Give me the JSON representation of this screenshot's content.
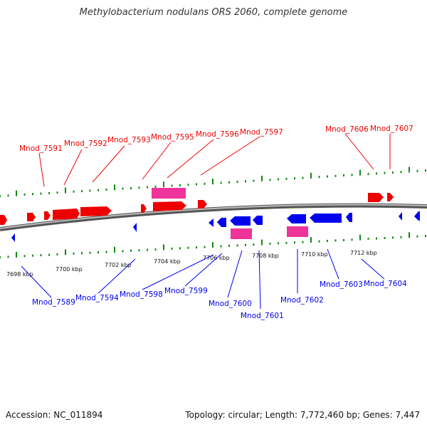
{
  "title": "Methylobacterium nodulans ORS 2060, complete genome",
  "footer": {
    "accession": "Accession: NC_011894",
    "summary": "Topology: circular; Length: 7,772,460 bp; Genes: 7,447"
  },
  "colors": {
    "forward_gene": "#ee0000",
    "reverse_gene": "#0000ee",
    "rna_gene": "#ee3399",
    "tick": "#118811",
    "backbone": "#888888"
  },
  "scale_labels": [
    "7698 kbp",
    "7700 kbp",
    "7702 kbp",
    "7704 kbp",
    "7706 kbp",
    "7708 kbp",
    "7710 kbp",
    "7712 kbp"
  ],
  "forward_gene_labels": [
    "Mnod_7591",
    "Mnod_7592",
    "Mnod_7593",
    "Mnod_7595",
    "Mnod_7596",
    "Mnod_7597",
    "Mnod_7606",
    "Mnod_7607"
  ],
  "reverse_gene_labels": [
    "Mnod_7589",
    "Mnod_7594",
    "Mnod_7598",
    "Mnod_7599",
    "Mnod_7600",
    "Mnod_7601",
    "Mnod_7602",
    "Mnod_7603",
    "Mnod_7604"
  ]
}
